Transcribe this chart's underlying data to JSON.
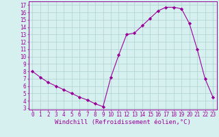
{
  "hours": [
    0,
    1,
    2,
    3,
    4,
    5,
    6,
    7,
    8,
    9,
    10,
    11,
    12,
    13,
    14,
    15,
    16,
    17,
    18,
    19,
    20,
    21,
    22,
    23
  ],
  "values": [
    8.0,
    7.2,
    6.5,
    6.0,
    5.5,
    5.0,
    4.5,
    4.1,
    3.6,
    3.2,
    7.2,
    10.2,
    13.0,
    13.2,
    14.2,
    15.2,
    16.2,
    16.7,
    16.7,
    16.5,
    14.5,
    11.0,
    7.0,
    4.5
  ],
  "line_color": "#990099",
  "marker": "D",
  "marker_size": 2.2,
  "bg_color": "#d6f0f0",
  "grid_color": "#aecfcf",
  "axes_color": "#990099",
  "xlabel": "Windchill (Refroidissement éolien,°C)",
  "xlabel_fontsize": 6.5,
  "ylabel_ticks": [
    3,
    4,
    5,
    6,
    7,
    8,
    9,
    10,
    11,
    12,
    13,
    14,
    15,
    16,
    17
  ],
  "ylim_min": 2.8,
  "ylim_max": 17.5,
  "xlim_min": -0.5,
  "xlim_max": 23.5,
  "tick_fontsize": 5.5
}
